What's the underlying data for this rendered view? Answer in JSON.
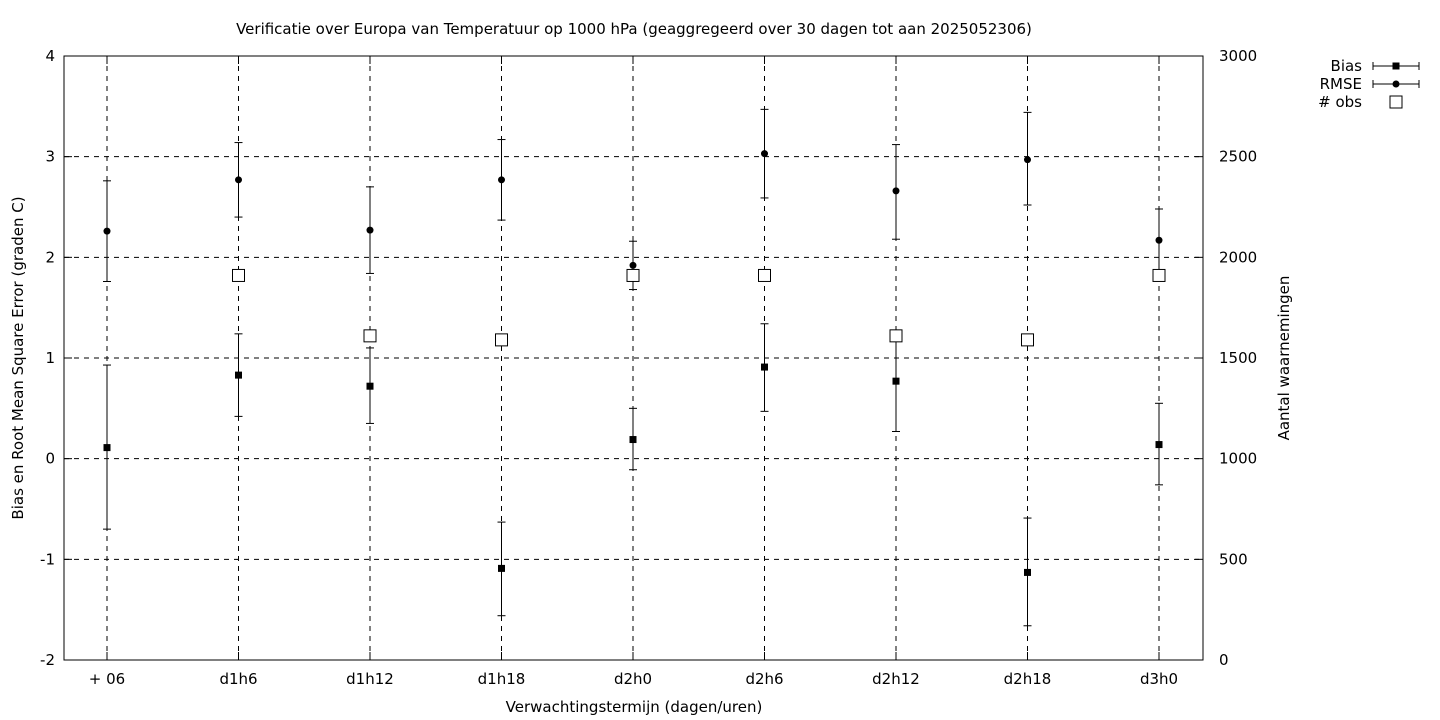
{
  "chart_data": {
    "type": "scatter",
    "title": "Verificatie over Europa van Temperatuur op 1000 hPa (geaggregeerd over 30 dagen tot aan 2025052306)",
    "xlabel": "Verwachtingstermijn (dagen/uren)",
    "ylabel": "Bias en Root Mean Square Error (graden C)",
    "y2label": "Aantal waarnemingen",
    "categories": [
      "+ 06",
      "d1h6",
      "d1h12",
      "d1h18",
      "d2h0",
      "d2h6",
      "d2h12",
      "d2h18",
      "d3h0"
    ],
    "ylim": [
      -2,
      4
    ],
    "yticks": [
      "-2",
      "-1",
      "0",
      "1",
      "2",
      "3",
      "4"
    ],
    "y2lim": [
      0,
      3000
    ],
    "y2ticks": [
      "0",
      "500",
      "1000",
      "1500",
      "2000",
      "2500",
      "3000"
    ],
    "grid": true,
    "legend_position": "top-right",
    "series": [
      {
        "name": "Bias",
        "marker": "square",
        "axis": "left",
        "values": [
          0.11,
          0.83,
          0.72,
          -1.09,
          0.19,
          0.91,
          0.77,
          -1.13,
          0.14
        ],
        "err_low": [
          -0.7,
          0.42,
          0.35,
          -1.56,
          -0.11,
          0.47,
          0.27,
          -1.66,
          -0.26
        ],
        "err_high": [
          0.93,
          1.24,
          1.1,
          -0.63,
          0.5,
          1.34,
          1.26,
          -0.59,
          0.55
        ]
      },
      {
        "name": "RMSE",
        "marker": "circle",
        "axis": "left",
        "values": [
          2.26,
          2.77,
          2.27,
          2.77,
          1.92,
          3.03,
          2.66,
          2.97,
          2.17
        ],
        "err_low": [
          1.76,
          2.4,
          1.84,
          2.37,
          1.68,
          2.59,
          2.18,
          2.52,
          1.82
        ],
        "err_high": [
          2.76,
          3.14,
          2.7,
          3.17,
          2.16,
          3.47,
          3.12,
          3.44,
          2.48
        ]
      },
      {
        "name": "# obs",
        "marker": "open-square",
        "axis": "right",
        "values": [
          null,
          1910,
          1610,
          1590,
          1910,
          1910,
          1610,
          1590,
          1910
        ]
      }
    ]
  }
}
